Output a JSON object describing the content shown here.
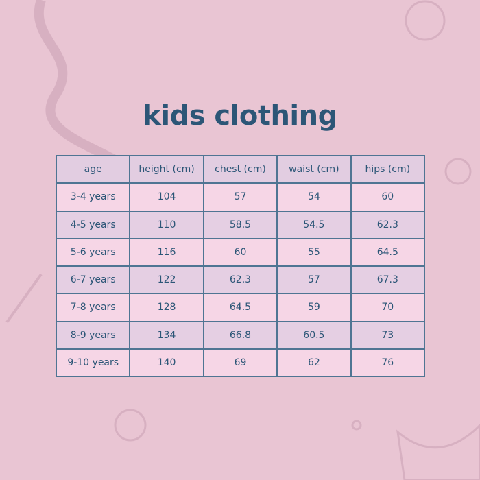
{
  "title": "kids clothing",
  "table": {
    "headers": [
      "age",
      "height (cm)",
      "chest (cm)",
      "waist (cm)",
      "hips (cm)"
    ],
    "rows": [
      [
        "3-4 years",
        "104",
        "57",
        "54",
        "60"
      ],
      [
        "4-5 years",
        "110",
        "58.5",
        "54.5",
        "62.3"
      ],
      [
        "5-6 years",
        "116",
        "60",
        "55",
        "64.5"
      ],
      [
        "6-7 years",
        "122",
        "62.3",
        "57",
        "67.3"
      ],
      [
        "7-8 years",
        "128",
        "64.5",
        "59",
        "70"
      ],
      [
        "8-9 years",
        "134",
        "66.8",
        "60.5",
        "73"
      ],
      [
        "9-10 years",
        "140",
        "69",
        "62",
        "76"
      ]
    ]
  },
  "colors": {
    "background": "#e9c5d3",
    "text": "#2c5677",
    "row_light": "#f6d6e6",
    "row_dark": "#e5cfe3"
  }
}
